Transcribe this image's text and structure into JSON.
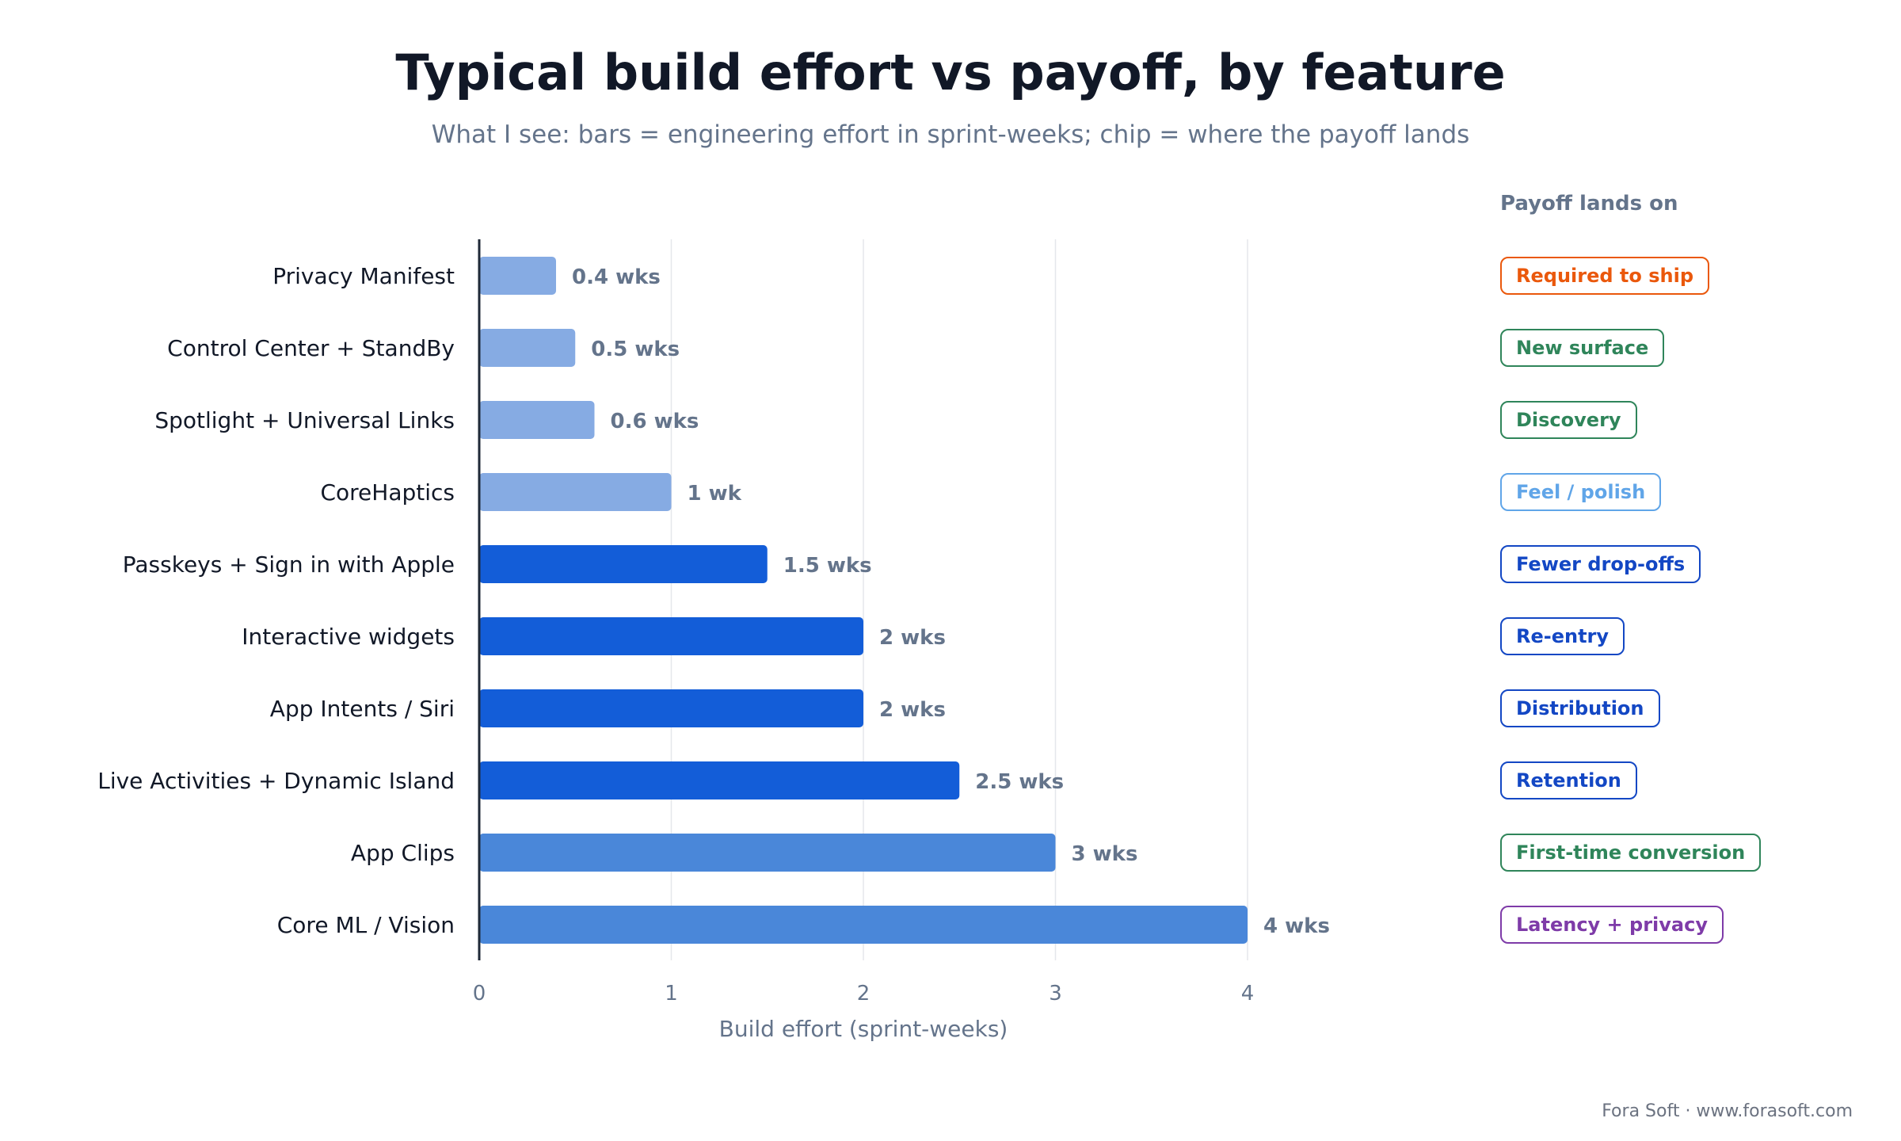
{
  "title": "Typical build effort vs payoff, by feature",
  "subtitle": "What I see: bars = engineering effort in sprint-weeks; chip = where the payoff lands",
  "payoff_header": "Payoff lands on",
  "footer": "Fora Soft · www.forasoft.com",
  "colors": {
    "light_bar": "#86ABE3",
    "dark_bar": "#135DD8",
    "mid_bar": "#4A87D9",
    "grid": "#E5E7EB",
    "axis": "#1F2937",
    "tick_text": "#64748b",
    "label_text": "#111827",
    "value_text": "#64748b"
  },
  "chart_data": {
    "type": "bar",
    "orientation": "horizontal",
    "xlabel": "Build effort (sprint-weeks)",
    "xlim": [
      0,
      4.4
    ],
    "xticks": [
      0,
      1,
      2,
      3,
      4
    ],
    "grid": true,
    "categories": [
      "Privacy Manifest",
      "Control Center + StandBy",
      "Spotlight + Universal Links",
      "CoreHaptics",
      "Passkeys + Sign in with Apple",
      "Interactive widgets",
      "App Intents / Siri",
      "Live Activities + Dynamic Island",
      "App Clips",
      "Core ML / Vision"
    ],
    "values": [
      0.4,
      0.5,
      0.6,
      1,
      1.5,
      2,
      2,
      2.5,
      3,
      4
    ],
    "value_labels": [
      "0.4 wks",
      "0.5 wks",
      "0.6 wks",
      "1 wk",
      "1.5 wks",
      "2 wks",
      "2 wks",
      "2.5 wks",
      "3 wks",
      "4 wks"
    ],
    "bar_colors": [
      "#86ABE3",
      "#86ABE3",
      "#86ABE3",
      "#86ABE3",
      "#135DD8",
      "#135DD8",
      "#135DD8",
      "#135DD8",
      "#4A87D9",
      "#4A87D9"
    ],
    "payoff_chips": [
      {
        "label": "Required to ship",
        "color": "#EA580C"
      },
      {
        "label": "New surface",
        "color": "#2F855A"
      },
      {
        "label": "Discovery",
        "color": "#2F855A"
      },
      {
        "label": "Feel / polish",
        "color": "#60A5E8"
      },
      {
        "label": "Fewer drop-offs",
        "color": "#1347C4"
      },
      {
        "label": "Re-entry",
        "color": "#1347C4"
      },
      {
        "label": "Distribution",
        "color": "#1347C4"
      },
      {
        "label": "Retention",
        "color": "#1347C4"
      },
      {
        "label": "First-time conversion",
        "color": "#2F855A"
      },
      {
        "label": "Latency + privacy",
        "color": "#7E3BA8"
      }
    ]
  }
}
